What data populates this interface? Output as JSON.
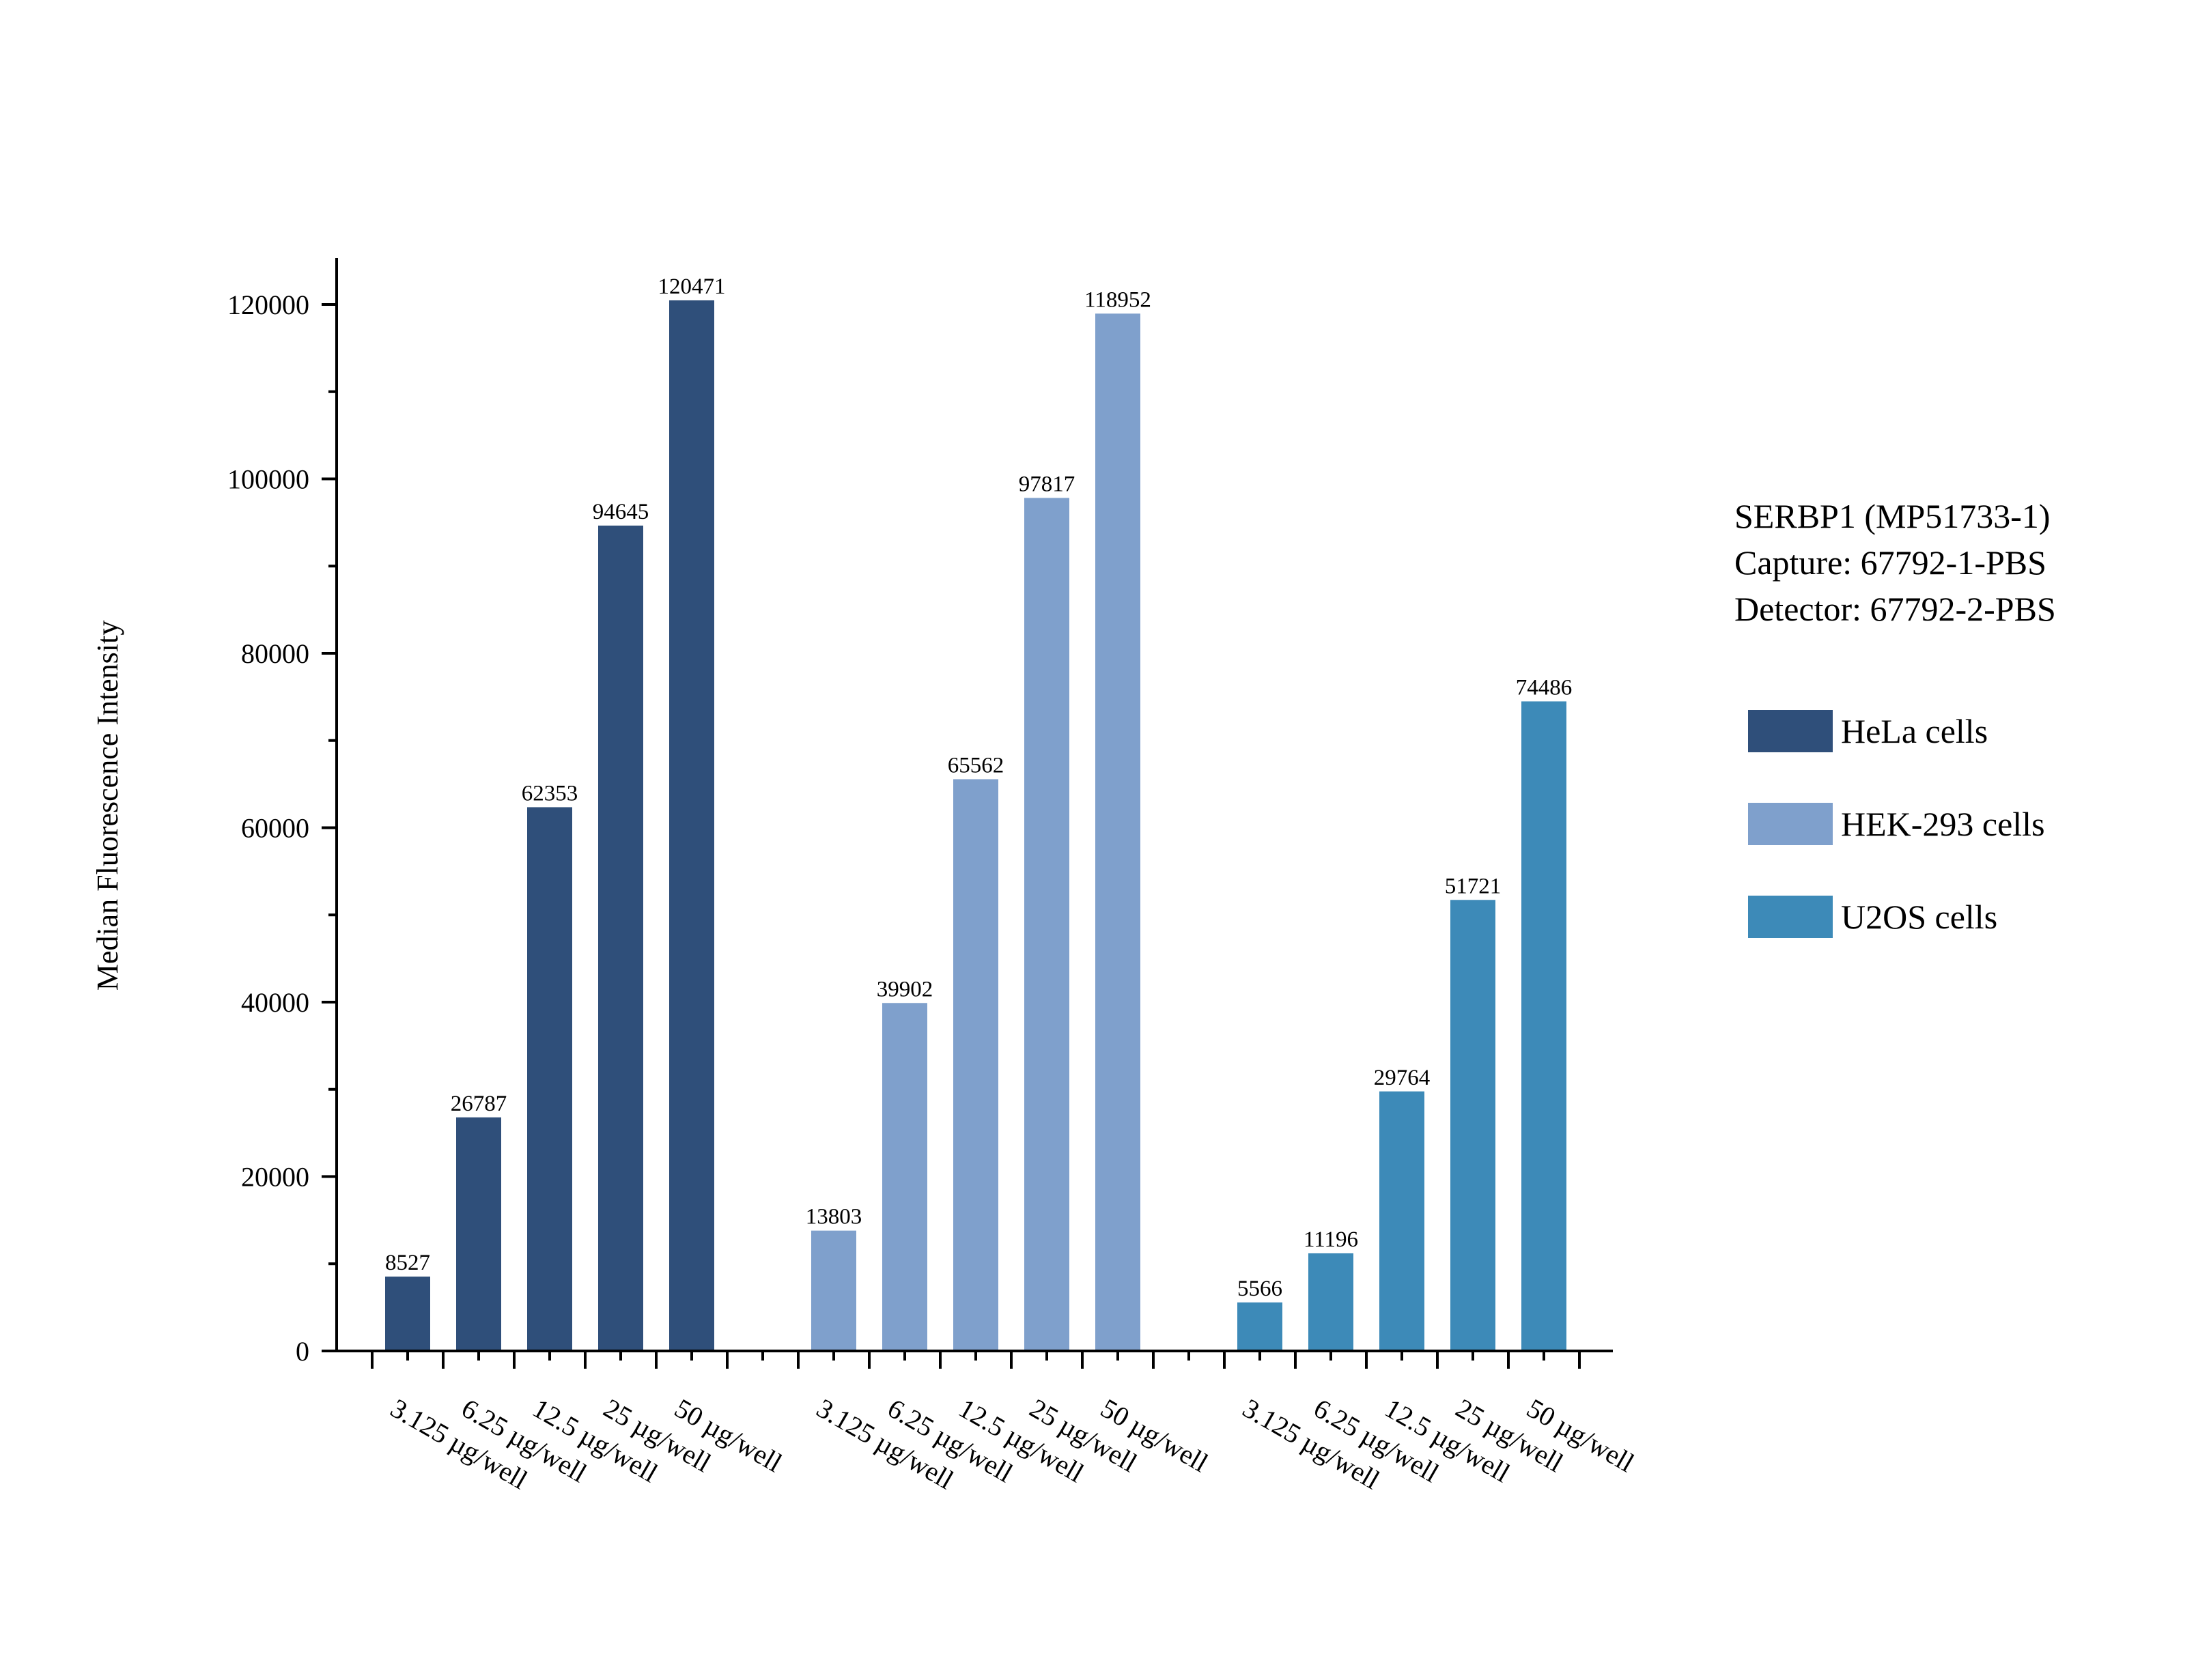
{
  "chart_data": {
    "type": "bar",
    "ylabel": "Median Fluorescence Intensity",
    "ylim": [
      0,
      125000
    ],
    "yticks": [
      0,
      20000,
      40000,
      60000,
      80000,
      100000,
      120000
    ],
    "categories": [
      "3.125 µg/well",
      "6.25 µg/well",
      "12.5 µg/well",
      "25 µg/well",
      "50 µg/well"
    ],
    "series": [
      {
        "name": "HeLa cells",
        "color": "#2f4f7a",
        "values": [
          8527,
          26787,
          62353,
          94645,
          120471
        ]
      },
      {
        "name": "HEK-293 cells",
        "color": "#7fa0cc",
        "values": [
          13803,
          39902,
          65562,
          97817,
          118952
        ]
      },
      {
        "name": "U2OS cells",
        "color": "#3d8ab8",
        "values": [
          5566,
          11196,
          29764,
          51721,
          74486
        ]
      }
    ],
    "annotation": [
      "SERBP1 (MP51733-1)",
      "Capture: 67792-1-PBS",
      "Detector: 67792-2-PBS"
    ],
    "legend_position": "right",
    "grid": false
  }
}
